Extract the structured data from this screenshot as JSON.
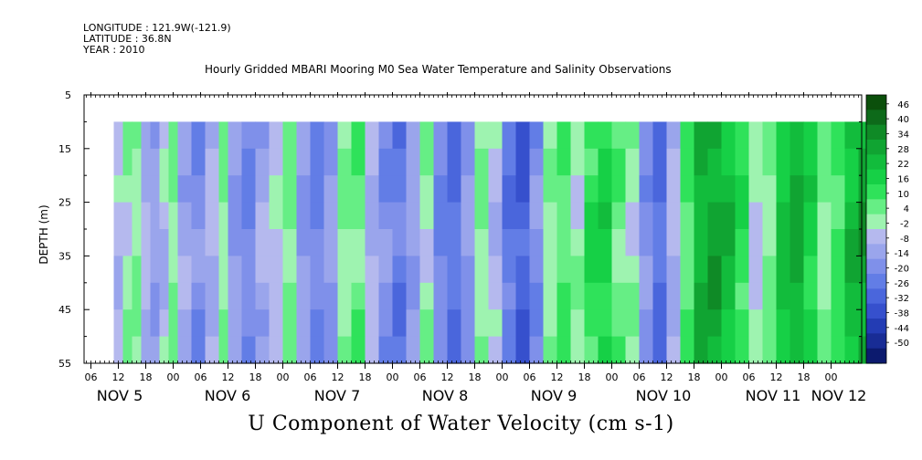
{
  "header": {
    "longitude": "LONGITUDE : 121.9W(-121.9)",
    "latitude": "LATITUDE : 36.8N",
    "year": "YEAR : 2010"
  },
  "title": "Hourly Gridded MBARI Mooring M0 Sea Water Temperature and Salinity Observations",
  "subtitle": "U Component of Water Velocity (cm s-1)",
  "chart_data": {
    "type": "heatmap",
    "ylabel": "DEPTH (m)",
    "ylim": [
      55,
      5
    ],
    "y_ticks": [
      "5",
      "15",
      "25",
      "35",
      "45",
      "55"
    ],
    "x_hour_ticks": [
      "06",
      "12",
      "18",
      "00",
      "06",
      "12",
      "18",
      "00",
      "06",
      "12",
      "18",
      "00",
      "06",
      "12",
      "18",
      "00",
      "06",
      "12",
      "18",
      "00",
      "06",
      "12",
      "18",
      "00",
      "06",
      "12",
      "18",
      "00"
    ],
    "x_day_labels": [
      "NOV 5",
      "NOV 6",
      "NOV 7",
      "NOV 8",
      "NOV 9",
      "NOV 10",
      "NOV 11",
      "NOV 12"
    ],
    "data_depth_range": [
      10,
      55
    ],
    "colorbar_labels": [
      "46",
      "40",
      "34",
      "28",
      "22",
      "16",
      "10",
      "4",
      "-2",
      "-8",
      "-14",
      "-20",
      "-26",
      "-32",
      "-38",
      "-44",
      "-50"
    ],
    "colorbar_colors": [
      "#0b4f0b",
      "#0d6a1a",
      "#0f8a26",
      "#10a432",
      "#12bc3c",
      "#16d046",
      "#2fe25a",
      "#66ee85",
      "#9ef3b0",
      "#b5b9ee",
      "#9aa5ec",
      "#7f90ea",
      "#627de6",
      "#4a66dc",
      "#3650cd",
      "#233cb4",
      "#182c95",
      "#0c1a6e"
    ],
    "profile_hours": [
      11,
      13,
      15,
      17,
      19,
      21,
      23,
      25,
      28,
      31,
      34,
      36,
      39,
      42,
      45,
      48,
      51,
      54,
      57,
      60,
      63,
      66,
      69,
      72,
      75,
      78,
      81,
      84,
      87,
      90,
      93,
      96,
      99,
      102,
      105,
      108,
      111,
      114,
      117,
      120,
      123,
      126,
      129,
      132,
      135,
      138,
      141,
      144,
      147,
      150,
      153,
      156,
      159,
      162,
      165,
      168,
      171,
      174,
      177,
      179
    ],
    "profile_u": [
      -4,
      2,
      4,
      -6,
      -10,
      -4,
      6,
      -8,
      -14,
      -6,
      4,
      -10,
      -16,
      -8,
      -2,
      6,
      -12,
      -18,
      -10,
      4,
      8,
      -6,
      -14,
      -20,
      -10,
      2,
      -16,
      -22,
      -12,
      4,
      -4,
      -20,
      -26,
      -14,
      4,
      10,
      2,
      14,
      18,
      8,
      2,
      -14,
      -24,
      -6,
      10,
      26,
      30,
      24,
      14,
      -2,
      6,
      22,
      28,
      18,
      4,
      12,
      24,
      30,
      20,
      18
    ]
  }
}
